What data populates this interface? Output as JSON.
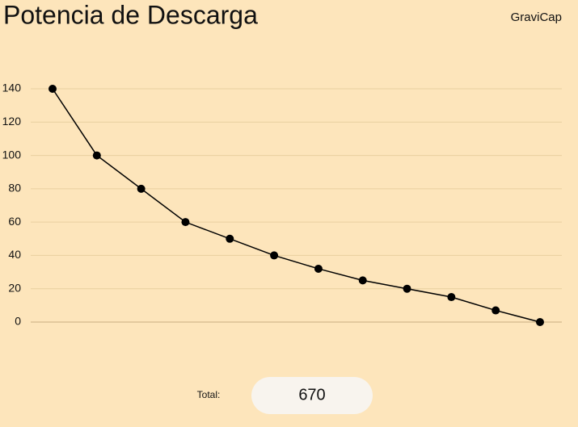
{
  "chart_data": {
    "type": "line",
    "title": "Potencia de Descarga",
    "brand": "GraviCap",
    "categories": [
      null,
      null,
      null,
      null,
      null,
      null,
      null,
      null,
      null,
      null,
      null,
      null
    ],
    "values": [
      140,
      100,
      80,
      60,
      50,
      40,
      32,
      25,
      20,
      15,
      7,
      0
    ],
    "color": "#000000",
    "ylim": [
      0,
      140
    ],
    "yticks": [
      0,
      20,
      40,
      60,
      80,
      100,
      120,
      140
    ],
    "grid": true,
    "total_label": "Total:",
    "total_value": 670
  }
}
